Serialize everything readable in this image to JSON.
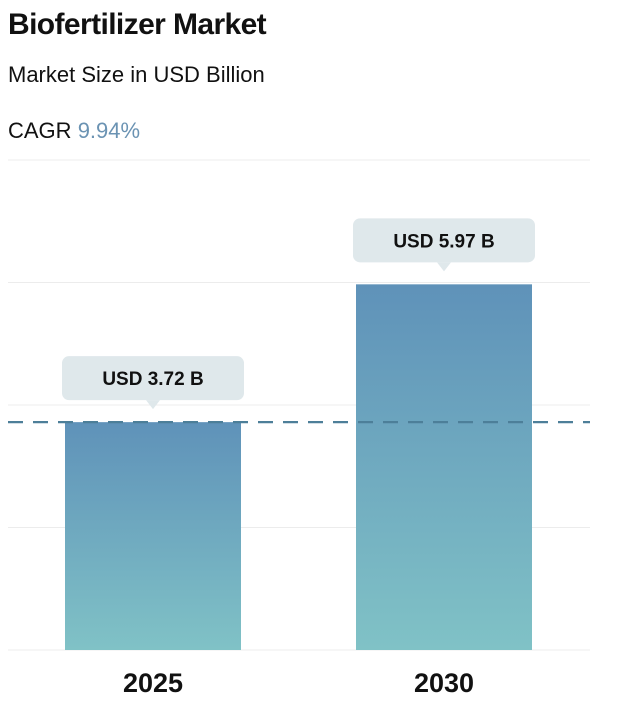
{
  "header": {
    "title": "Biofertilizer Market",
    "subtitle": "Market Size in USD Billion",
    "cagr_label": "CAGR",
    "cagr_value": "9.94%"
  },
  "colors": {
    "bar_top": "#5f92b9",
    "bar_bottom": "#80c2c6",
    "callout": "#dfe8eb",
    "reference_line": "#4d7f99",
    "grid": "#ececec"
  },
  "chart_data": {
    "type": "bar",
    "categories": [
      "2025",
      "2030"
    ],
    "values": [
      3.72,
      5.97
    ],
    "value_labels": [
      "USD 3.72 B",
      "USD 5.97 B"
    ],
    "ylim": [
      0,
      8
    ],
    "grid": true,
    "reference_line": 3.72,
    "reference_style": "dashed"
  }
}
